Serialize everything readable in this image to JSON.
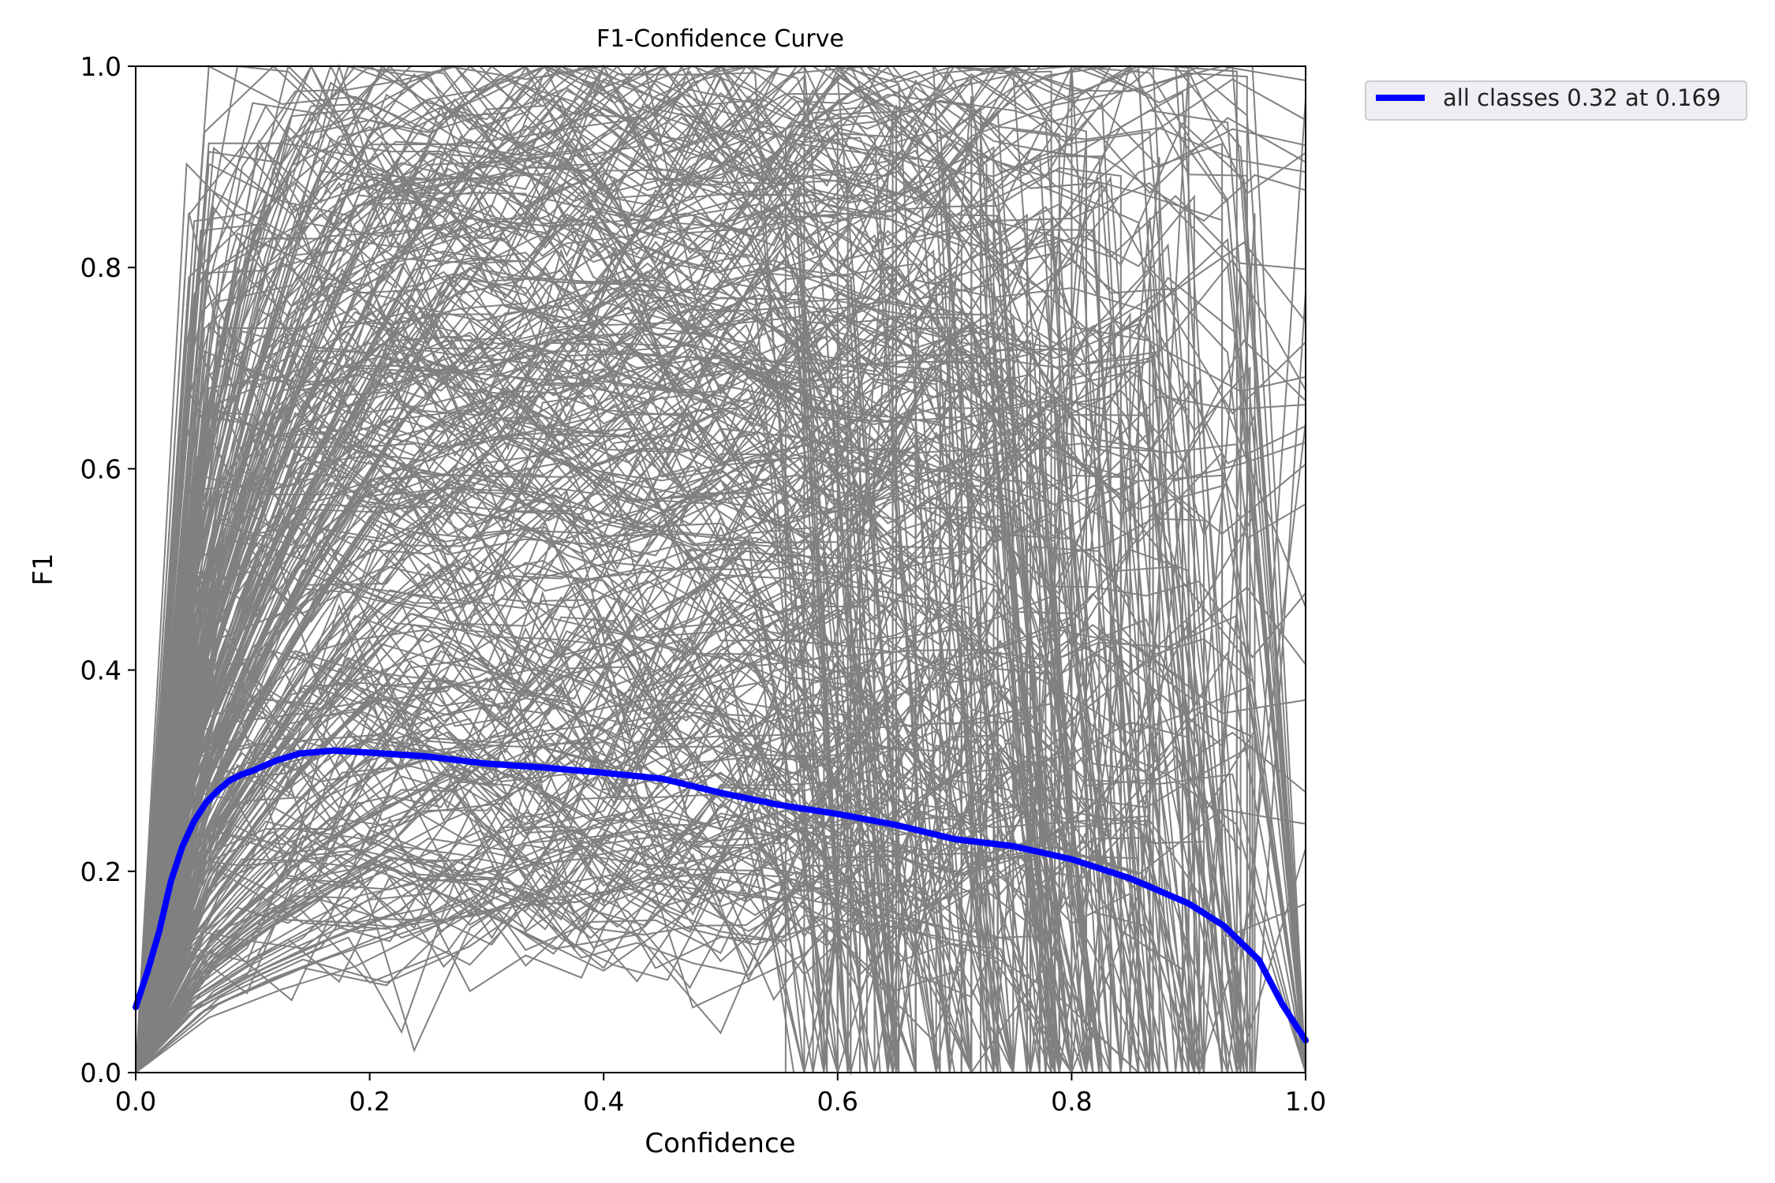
{
  "chart_data": {
    "type": "line",
    "title": "F1-Confidence Curve",
    "xlabel": "Confidence",
    "ylabel": "F1",
    "xlim": [
      0.0,
      1.0
    ],
    "ylim": [
      0.0,
      1.0
    ],
    "grid": false,
    "x_ticks": [
      "0.0",
      "0.2",
      "0.4",
      "0.6",
      "0.8",
      "1.0"
    ],
    "y_ticks": [
      "0.0",
      "0.2",
      "0.4",
      "0.6",
      "0.8",
      "1.0"
    ],
    "legend": {
      "placement": "outside-top-right",
      "entries": [
        "all classes 0.32 at 0.169"
      ]
    },
    "colors": {
      "per_class": "#808080",
      "all_classes": "#0000ff"
    },
    "per_class_curves_note_count": 360,
    "series": [
      {
        "name": "all classes 0.32 at 0.169",
        "color": "#0000ff",
        "x": [
          0.0,
          0.01,
          0.02,
          0.03,
          0.04,
          0.05,
          0.06,
          0.07,
          0.08,
          0.09,
          0.1,
          0.12,
          0.14,
          0.169,
          0.2,
          0.25,
          0.3,
          0.35,
          0.4,
          0.45,
          0.5,
          0.55,
          0.6,
          0.65,
          0.7,
          0.75,
          0.8,
          0.85,
          0.9,
          0.93,
          0.96,
          0.98,
          1.0
        ],
        "y": [
          0.065,
          0.1,
          0.14,
          0.19,
          0.225,
          0.25,
          0.268,
          0.28,
          0.29,
          0.296,
          0.3,
          0.31,
          0.317,
          0.32,
          0.318,
          0.314,
          0.307,
          0.303,
          0.298,
          0.292,
          0.278,
          0.266,
          0.257,
          0.246,
          0.232,
          0.225,
          0.212,
          0.193,
          0.168,
          0.146,
          0.112,
          0.068,
          0.032
        ]
      }
    ]
  }
}
